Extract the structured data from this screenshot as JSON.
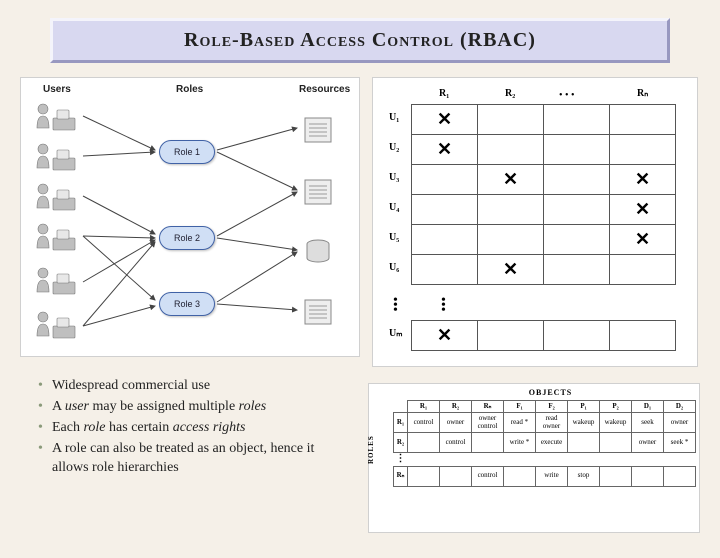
{
  "title": "Role-Based Access Control (RBAC)",
  "colors": {
    "slide_bg": "#f5f0e8",
    "title_bg": "#d8d8f0",
    "title_border_light": "#f4f4fb",
    "title_border_dark": "#9898c0",
    "bullet_color": "#8a9a7a",
    "role_fill": "#d0dff5",
    "role_border": "#4062a6",
    "panel_bg": "#ffffff"
  },
  "panelA": {
    "headers": {
      "users": "Users",
      "roles": "Roles",
      "resources": "Resources"
    },
    "roles": [
      "Role 1",
      "Role 2",
      "Role 3"
    ],
    "user_count": 6,
    "resource_count": 4
  },
  "panelB": {
    "col_labels": [
      "R₁",
      "R₂",
      "Rₙ"
    ],
    "col_ellipsis": "• • •",
    "row_labels": [
      "U₁",
      "U₂",
      "U₃",
      "U₄",
      "U₅",
      "U₆",
      "Uₘ"
    ],
    "mark": "✕",
    "marks_grid": [
      [
        true,
        false,
        false,
        false
      ],
      [
        true,
        false,
        false,
        false
      ],
      [
        false,
        true,
        false,
        true
      ],
      [
        false,
        false,
        false,
        true
      ],
      [
        false,
        false,
        false,
        true
      ],
      [
        false,
        true,
        false,
        false
      ]
    ],
    "last_row_marks": [
      true,
      false,
      false,
      false
    ]
  },
  "bullets": [
    {
      "plain": "Widespread commercial use"
    },
    {
      "prefix": "A ",
      "i1": "user",
      "mid": " may be assigned multiple ",
      "i2": "roles"
    },
    {
      "prefix": "Each ",
      "i1": "role",
      "mid": " has certain ",
      "i2": "access rights"
    },
    {
      "plain": "A role can also be treated as an object, hence it allows role hierarchies"
    }
  ],
  "panelD": {
    "objects_label": "OBJECTS",
    "roles_label": "ROLES",
    "cols": [
      "R₁",
      "R₂",
      "Rₙ",
      "F₁",
      "F₂",
      "P₁",
      "P₂",
      "D₁",
      "D₂"
    ],
    "rows": [
      {
        "h": "R₁",
        "cells": [
          "control",
          "owner",
          "owner control",
          "read *",
          "read owner",
          "wakeup",
          "wakeup",
          "seek",
          "owner"
        ]
      },
      {
        "h": "R₂",
        "cells": [
          "",
          "control",
          "",
          "write *",
          "execute",
          "",
          "",
          "owner",
          "seek *"
        ]
      }
    ],
    "last_row": {
      "h": "Rₙ",
      "cells": [
        "",
        "",
        "control",
        "",
        "write",
        "stop",
        "",
        "",
        ""
      ]
    }
  }
}
